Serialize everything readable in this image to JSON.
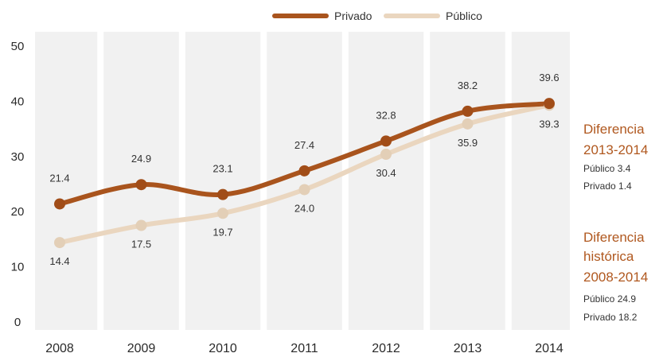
{
  "legend": {
    "items": [
      {
        "name": "Privado",
        "color": "#a9541d"
      },
      {
        "name": "Público",
        "color": "#ead6bf"
      }
    ],
    "placement": "top-center"
  },
  "chart_data": {
    "type": "line",
    "categories": [
      "2008",
      "2009",
      "2010",
      "2011",
      "2012",
      "2013",
      "2014"
    ],
    "series": [
      {
        "name": "Privado",
        "color": "#a9541d",
        "values": [
          21.4,
          24.9,
          23.1,
          27.4,
          32.8,
          38.2,
          39.6
        ],
        "labels": [
          "21.4",
          "24.9",
          "23.1",
          "27.4",
          "32.8",
          "38.2",
          "39.6"
        ]
      },
      {
        "name": "Público",
        "color": "#ead6bf",
        "values": [
          14.4,
          17.5,
          19.7,
          24.0,
          30.4,
          35.9,
          39.3
        ],
        "labels": [
          "14.4",
          "17.5",
          "19.7",
          "24.0",
          "30.4",
          "35.9",
          "39.3"
        ]
      }
    ],
    "yticks": [
      "0",
      "10",
      "20",
      "30",
      "40",
      "50"
    ],
    "ylim": [
      0,
      50
    ],
    "grid": false,
    "background_bands": true,
    "legend_placement": "top-center"
  },
  "annotations": {
    "recent": {
      "title": "Diferencia",
      "period": "2013-2014",
      "lines": [
        "Público 3.4",
        "Privado 1.4"
      ]
    },
    "historic": {
      "title": "Diferencia",
      "subtitle": "histórica",
      "period": "2008-2014",
      "lines": [
        "Público 24.9",
        "Privado 18.2"
      ]
    },
    "color": "#b0581f"
  }
}
